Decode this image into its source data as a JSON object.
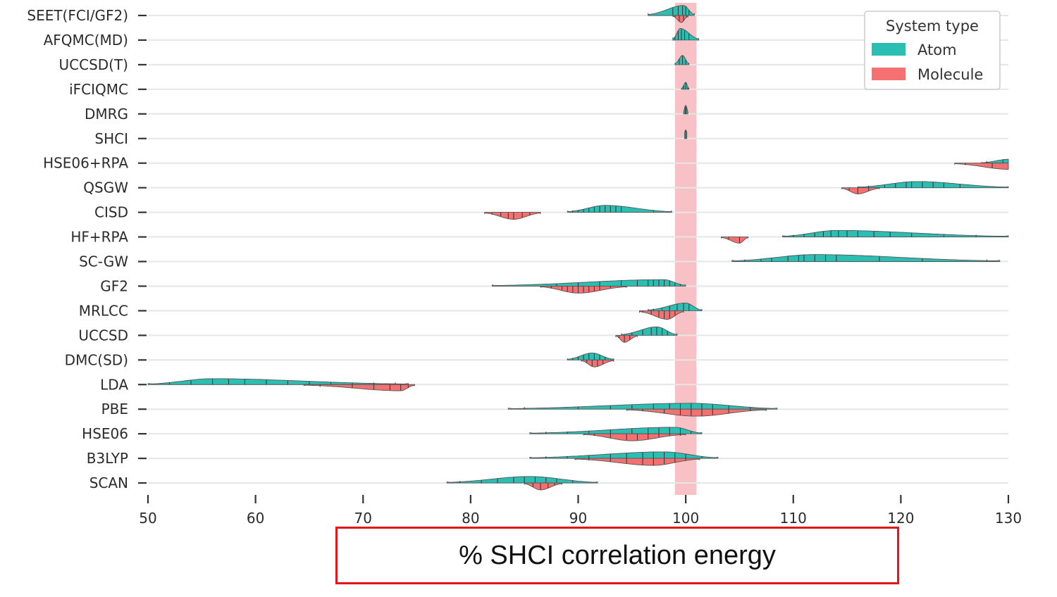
{
  "chart_data": {
    "type": "violin",
    "title": "",
    "xlabel": "% SHCI correlation energy",
    "ylabel": "",
    "xlim": [
      50,
      130
    ],
    "xticks": [
      "50",
      "60",
      "70",
      "80",
      "90",
      "100",
      "110",
      "120",
      "130"
    ],
    "reference_band": [
      99,
      101
    ],
    "legend": {
      "title": "System type",
      "position": "top-right",
      "entries": [
        {
          "label": "Atom",
          "color": "#2bbfb3"
        },
        {
          "label": "Molecule",
          "color": "#f57070"
        }
      ]
    },
    "colors": {
      "Atom": "#2bbfb3",
      "Molecule": "#f57070",
      "band": "#f7b6bb"
    },
    "methods": [
      {
        "name": "SEET(FCI/GF2)",
        "atom": {
          "min": 96.5,
          "max": 100.8,
          "peak": 99.8,
          "height": 0.65,
          "rug": [
            98.8,
            99.3,
            99.7,
            100.0,
            100.3
          ]
        },
        "molecule": {
          "min": 98.8,
          "max": 100.2,
          "peak": 99.6,
          "height": 0.45,
          "rug": [
            99.0,
            99.4,
            99.8,
            100.1
          ]
        }
      },
      {
        "name": "AFQMC(MD)",
        "atom": {
          "min": 98.8,
          "max": 101.2,
          "peak": 99.5,
          "height": 0.75,
          "rug": [
            99.0,
            99.3,
            99.6,
            99.9,
            100.3
          ]
        },
        "molecule": null
      },
      {
        "name": "UCCSD(T)",
        "atom": {
          "min": 99.0,
          "max": 100.3,
          "peak": 99.7,
          "height": 0.6,
          "rug": [
            99.4,
            99.7,
            100.0
          ]
        },
        "molecule": null
      },
      {
        "name": "iFCIQMC",
        "atom": {
          "min": 99.6,
          "max": 100.3,
          "peak": 100.0,
          "height": 0.45,
          "rug": [
            99.8,
            100.0,
            100.2
          ]
        },
        "molecule": null
      },
      {
        "name": "DMRG",
        "atom": {
          "min": 99.8,
          "max": 100.2,
          "peak": 100.0,
          "height": 0.55,
          "rug": [
            99.95,
            100.05
          ]
        },
        "molecule": null
      },
      {
        "name": "SHCI",
        "atom": {
          "min": 99.9,
          "max": 100.1,
          "peak": 100.0,
          "height": 0.55,
          "rug": [
            100.0
          ]
        },
        "molecule": null
      },
      {
        "name": "HSE06+RPA",
        "atom": {
          "min": 127.5,
          "max": 130.0,
          "peak": 130.0,
          "height": 0.25,
          "rug": [
            128.0,
            129.5
          ]
        },
        "molecule": {
          "min": 125.0,
          "max": 130.0,
          "peak": 130.0,
          "height": 0.4,
          "rug": [
            126.0,
            128.5
          ]
        }
      },
      {
        "name": "QSGW",
        "atom": {
          "min": 116.0,
          "max": 130.0,
          "peak": 121.5,
          "height": 0.4,
          "rug": [
            117.0,
            118.5,
            119.5,
            120.5,
            121.0,
            122.0,
            123.0,
            124.0,
            125.5
          ]
        },
        "molecule": {
          "min": 114.5,
          "max": 118.0,
          "peak": 116.0,
          "height": 0.4,
          "rug": [
            115.2,
            116.0,
            117.0
          ]
        }
      },
      {
        "name": "CISD",
        "atom": {
          "min": 89.0,
          "max": 98.7,
          "peak": 92.5,
          "height": 0.45,
          "rug": [
            89.5,
            90.0,
            90.5,
            91.0,
            91.5,
            92.0,
            92.5,
            93.0,
            93.5,
            94.0,
            97.0
          ]
        },
        "molecule": {
          "min": 81.3,
          "max": 86.5,
          "peak": 84.0,
          "height": 0.45,
          "rug": [
            82.0,
            82.8,
            83.5,
            84.0,
            84.8,
            85.5
          ]
        }
      },
      {
        "name": "HF+RPA",
        "atom": {
          "min": 109.0,
          "max": 130.0,
          "peak": 114.0,
          "height": 0.42,
          "rug": [
            110.0,
            111.0,
            112.0,
            112.8,
            113.5,
            114.2,
            115.0,
            116.0,
            117.5,
            119.0,
            121.0,
            124.0,
            127.0
          ]
        },
        "molecule": {
          "min": 103.3,
          "max": 105.8,
          "peak": 105.0,
          "height": 0.4,
          "rug": [
            104.0,
            105.0
          ]
        }
      },
      {
        "name": "SC-GW",
        "atom": {
          "min": 104.3,
          "max": 129.2,
          "peak": 112.0,
          "height": 0.45,
          "rug": [
            105.5,
            107.0,
            108.0,
            109.5,
            110.5,
            111.0,
            112.0,
            113.0,
            114.0,
            118.0,
            122.0,
            128.0
          ]
        },
        "molecule": null
      },
      {
        "name": "GF2",
        "atom": {
          "min": 82.0,
          "max": 100.0,
          "peak": 98.0,
          "height": 0.42,
          "rug": [
            88.0,
            90.0,
            92.0,
            94.0,
            95.5,
            96.5,
            97.0,
            97.5,
            98.0,
            98.5,
            99.0,
            99.5
          ]
        },
        "molecule": {
          "min": 86.5,
          "max": 94.5,
          "peak": 90.0,
          "height": 0.45,
          "rug": [
            87.5,
            88.5,
            89.0,
            89.5,
            90.0,
            90.5,
            91.0,
            91.5,
            92.0,
            93.0
          ]
        }
      },
      {
        "name": "MRLCC",
        "atom": {
          "min": 96.5,
          "max": 101.5,
          "peak": 100.0,
          "height": 0.5,
          "rug": [
            97.0,
            97.8,
            98.5,
            99.2,
            99.8,
            100.3
          ]
        },
        "molecule": {
          "min": 95.7,
          "max": 99.8,
          "peak": 98.3,
          "height": 0.55,
          "rug": [
            96.0,
            96.8,
            97.5,
            98.0,
            98.5,
            99.0
          ]
        }
      },
      {
        "name": "UCCSD",
        "atom": {
          "min": 94.0,
          "max": 99.2,
          "peak": 97.3,
          "height": 0.55,
          "rug": [
            95.0,
            96.0,
            96.8,
            97.3,
            97.8,
            98.3
          ]
        },
        "molecule": {
          "min": 93.5,
          "max": 95.5,
          "peak": 94.3,
          "height": 0.45,
          "rug": [
            93.8,
            94.3,
            94.8
          ]
        }
      },
      {
        "name": "DMC(SD)",
        "atom": {
          "min": 89.0,
          "max": 93.3,
          "peak": 91.3,
          "height": 0.45,
          "rug": [
            89.5,
            90.0,
            90.5,
            91.0,
            91.5,
            92.0,
            92.5
          ]
        },
        "molecule": {
          "min": 90.3,
          "max": 93.3,
          "peak": 91.5,
          "height": 0.45,
          "rug": [
            90.8,
            91.3,
            91.8,
            92.3
          ]
        }
      },
      {
        "name": "LDA",
        "atom": {
          "min": 50.0,
          "max": 74.2,
          "peak": 56.0,
          "height": 0.38,
          "rug": [
            52.0,
            54.0,
            56.0,
            57.5,
            59.0,
            61.0,
            63.0,
            65.0,
            67.0,
            69.0,
            71.0,
            73.0
          ]
        },
        "molecule": {
          "min": 64.5,
          "max": 74.8,
          "peak": 73.5,
          "height": 0.4,
          "rug": [
            66.0,
            69.0,
            71.0,
            72.5,
            73.5,
            74.2
          ]
        }
      },
      {
        "name": "PBE",
        "atom": {
          "min": 83.5,
          "max": 108.5,
          "peak": 100.5,
          "height": 0.38,
          "rug": [
            85.0,
            90.0,
            93.0,
            95.0,
            97.0,
            98.5,
            99.5,
            100.5,
            101.5,
            102.5,
            104.0,
            106.0
          ]
        },
        "molecule": {
          "min": 94.5,
          "max": 107.5,
          "peak": 101.0,
          "height": 0.45,
          "rug": [
            96.0,
            98.0,
            99.5,
            100.5,
            101.5,
            102.5,
            104.0,
            106.0
          ]
        }
      },
      {
        "name": "HSE06",
        "atom": {
          "min": 85.5,
          "max": 101.5,
          "peak": 99.0,
          "height": 0.42,
          "rug": [
            87.0,
            89.0,
            91.0,
            93.0,
            95.0,
            96.5,
            97.5,
            98.5,
            99.5,
            100.5
          ]
        },
        "molecule": {
          "min": 90.5,
          "max": 100.0,
          "peak": 95.0,
          "height": 0.45,
          "rug": [
            91.5,
            93.0,
            94.5,
            95.5,
            96.5,
            97.5,
            98.5,
            99.5
          ]
        }
      },
      {
        "name": "B3LYP",
        "atom": {
          "min": 85.5,
          "max": 103.0,
          "peak": 98.0,
          "height": 0.42,
          "rug": [
            87.0,
            89.0,
            91.0,
            93.0,
            94.5,
            96.0,
            97.0,
            98.0,
            99.0,
            100.0,
            101.5
          ]
        },
        "molecule": {
          "min": 89.7,
          "max": 101.3,
          "peak": 97.0,
          "height": 0.45,
          "rug": [
            91.0,
            93.0,
            94.5,
            96.0,
            97.0,
            98.0,
            99.0,
            100.0
          ]
        }
      },
      {
        "name": "SCAN",
        "atom": {
          "min": 77.8,
          "max": 91.8,
          "peak": 85.5,
          "height": 0.42,
          "rug": [
            79.0,
            81.0,
            82.5,
            84.0,
            85.0,
            86.0,
            87.0,
            88.0,
            89.5
          ]
        },
        "molecule": {
          "min": 85.0,
          "max": 88.5,
          "peak": 86.5,
          "height": 0.45,
          "rug": [
            85.8,
            86.5,
            87.2,
            87.8
          ]
        }
      }
    ]
  }
}
